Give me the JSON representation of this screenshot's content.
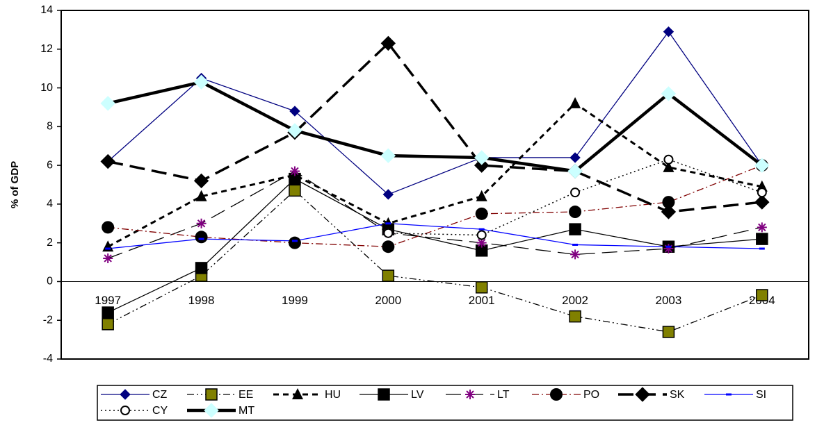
{
  "chart_data": {
    "type": "line",
    "y_label": "% of GDP",
    "categories": [
      "1997",
      "1998",
      "1999",
      "2000",
      "2001",
      "2002",
      "2003",
      "2004"
    ],
    "ylim": [
      -4,
      14
    ],
    "yticks": [
      -4,
      -2,
      0,
      2,
      4,
      6,
      8,
      10,
      12,
      14
    ],
    "series": [
      {
        "name": "CZ",
        "color": "#000080",
        "line_style": "solid",
        "width": 1.3,
        "marker": "diamond",
        "marker_color": "#000080",
        "values": [
          6.2,
          10.5,
          8.8,
          4.5,
          6.4,
          6.4,
          12.9,
          6.0
        ]
      },
      {
        "name": "EE",
        "color": "#000000",
        "line_style": "dash-dot-dot",
        "width": 1.3,
        "marker": "square",
        "marker_color": "#808000",
        "values": [
          -2.2,
          0.3,
          4.7,
          0.3,
          -0.3,
          -1.8,
          -2.6,
          -0.7
        ]
      },
      {
        "name": "HU",
        "color": "#000000",
        "line_style": "short-dash",
        "width": 3,
        "marker": "triangle",
        "marker_color": "#000000",
        "values": [
          1.8,
          4.4,
          5.5,
          3.0,
          4.4,
          9.2,
          5.9,
          4.9
        ]
      },
      {
        "name": "LV",
        "color": "#000000",
        "line_style": "solid",
        "width": 1.3,
        "marker": "square",
        "marker_color": "#000000",
        "values": [
          -1.6,
          0.7,
          5.3,
          2.7,
          1.6,
          2.7,
          1.8,
          2.2
        ]
      },
      {
        "name": "LT",
        "color": "#000000",
        "line_style": "long-dash",
        "width": 1.3,
        "marker": "asterisk",
        "marker_color": "#800080",
        "values": [
          1.2,
          3.0,
          5.7,
          2.5,
          2.0,
          1.4,
          1.7,
          2.8
        ]
      },
      {
        "name": "PO",
        "color": "#800000",
        "line_style": "dash-dot",
        "width": 1.3,
        "marker": "circle",
        "marker_color": "#000000",
        "values": [
          2.8,
          2.3,
          2.0,
          1.8,
          3.5,
          3.6,
          4.1,
          6.0
        ]
      },
      {
        "name": "SK",
        "color": "#000000",
        "line_style": "long-dash",
        "width": 3.5,
        "marker": "diamond",
        "marker_color": "#000000",
        "values": [
          6.2,
          5.2,
          7.7,
          12.3,
          6.0,
          5.7,
          3.6,
          4.1
        ]
      },
      {
        "name": "SI",
        "color": "#0000ff",
        "line_style": "solid",
        "width": 1.3,
        "marker": "dash",
        "marker_color": "#0000ff",
        "values": [
          1.7,
          2.2,
          2.1,
          3.0,
          2.7,
          1.9,
          1.8,
          1.7
        ]
      },
      {
        "name": "CY",
        "color": "#000000",
        "line_style": "dotted",
        "width": 1.5,
        "marker": "open-circle",
        "marker_color": "#000000",
        "values": [
          null,
          null,
          null,
          2.5,
          2.4,
          4.6,
          6.3,
          4.6
        ]
      },
      {
        "name": "MT",
        "color": "#000000",
        "line_style": "solid",
        "width": 4.5,
        "marker": "diamond",
        "marker_color": "#ccffff",
        "values": [
          9.2,
          10.3,
          7.8,
          6.5,
          6.4,
          5.7,
          9.7,
          6.0
        ]
      }
    ]
  }
}
